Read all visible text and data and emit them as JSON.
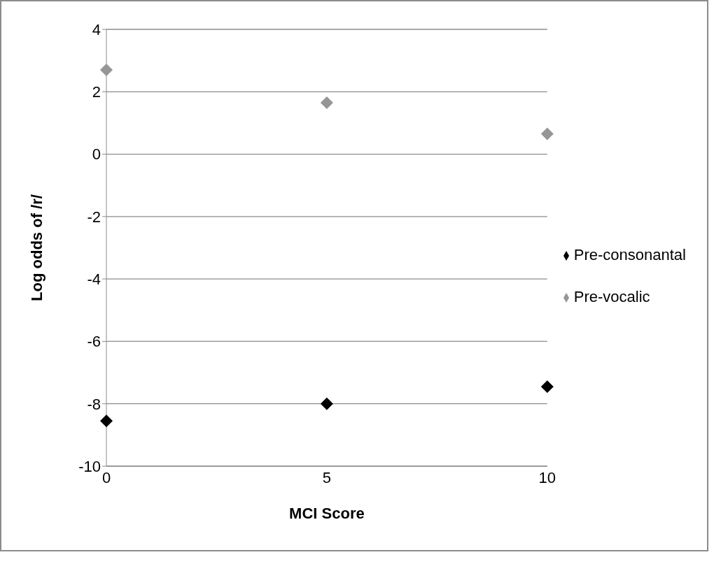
{
  "chart_data": {
    "type": "scatter",
    "xlabel": "MCI Score",
    "ylabel": "Log odds of /r/",
    "categories": [
      "0",
      "5",
      "10"
    ],
    "series": [
      {
        "name": "Pre-vocalic",
        "color": "#969696",
        "values": [
          2.7,
          1.65,
          0.65
        ]
      },
      {
        "name": "Pre-consonantal",
        "color": "#000000",
        "values": [
          -8.55,
          -8.0,
          -7.45
        ]
      }
    ],
    "ylim": [
      -10,
      4
    ],
    "yticks": [
      -10,
      -8,
      -6,
      -4,
      -2,
      0,
      2,
      4
    ],
    "grid": "y",
    "legend": "right",
    "marker": "diamond"
  }
}
